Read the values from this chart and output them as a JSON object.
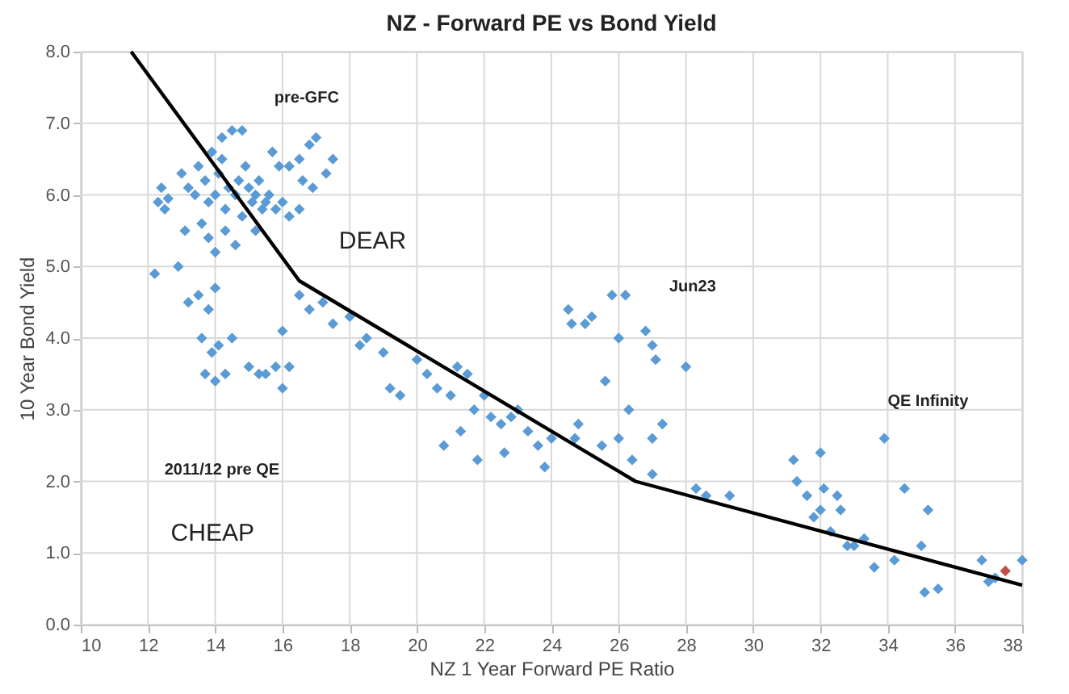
{
  "chart_data": {
    "type": "scatter",
    "title": "NZ - Forward PE vs Bond Yield",
    "xlabel": "NZ 1 Year Forward PE Ratio",
    "ylabel": "10 Year Bond Yield",
    "xlim": [
      10,
      38
    ],
    "xticks": [
      10,
      12,
      14,
      16,
      18,
      20,
      22,
      24,
      26,
      28,
      30,
      32,
      34,
      36,
      38
    ],
    "ylim": [
      0,
      8
    ],
    "yticks": [
      {
        "value": 0,
        "label": "0.0"
      },
      {
        "value": 1,
        "label": "1.0"
      },
      {
        "value": 2,
        "label": "2.0"
      },
      {
        "value": 3,
        "label": "3.0"
      },
      {
        "value": 4,
        "label": "4.0"
      },
      {
        "value": 5,
        "label": "5.0"
      },
      {
        "value": 6,
        "label": "6.0"
      },
      {
        "value": 7,
        "label": "7.0"
      },
      {
        "value": 8,
        "label": "8.0"
      }
    ],
    "grid": true,
    "marker": "diamond",
    "series": [
      {
        "color": "#5b9bd5",
        "x": [
          12.3,
          12.5,
          12.6,
          12.4,
          13.0,
          13.2,
          13.4,
          13.5,
          13.7,
          13.8,
          13.9,
          14.0,
          14.1,
          14.2,
          14.3,
          14.4,
          14.5,
          14.6,
          14.7,
          14.8,
          14.9,
          15.0,
          15.1,
          15.2,
          15.3,
          15.4,
          15.5,
          15.6,
          15.8,
          16.0,
          16.2,
          16.5,
          14.2,
          14.8,
          13.6,
          13.8,
          14.0,
          14.6,
          14.3,
          15.2,
          13.1,
          12.9,
          12.2,
          15.7,
          15.9,
          16.2,
          16.5,
          16.8,
          17.0,
          16.9,
          17.3,
          17.5,
          16.6,
          13.2,
          13.5,
          13.8,
          14.0,
          13.6,
          13.9,
          14.1,
          14.3,
          13.7,
          14.5,
          15.0,
          15.3,
          15.5,
          15.8,
          16.0,
          16.2,
          14.0,
          16.0,
          16.5,
          16.8,
          17.2,
          17.5,
          18.0,
          18.3,
          18.5,
          19.0,
          19.2,
          19.5,
          20.0,
          20.3,
          20.6,
          21.0,
          21.2,
          21.5,
          21.7,
          22.0,
          22.2,
          22.5,
          22.8,
          23.0,
          23.3,
          22.6,
          21.8,
          23.6,
          23.8,
          24.0,
          20.8,
          21.3,
          24.5,
          24.6,
          25.0,
          25.2,
          25.8,
          26.2,
          26.0,
          26.8,
          27.0,
          27.1,
          26.3,
          25.6,
          24.8,
          24.7,
          25.5,
          26.0,
          26.4,
          27.0,
          27.3,
          27.0,
          28.0,
          28.3,
          28.6,
          29.3,
          31.2,
          31.3,
          31.6,
          32.0,
          31.8,
          32.0,
          32.1,
          32.3,
          32.5,
          32.8,
          33.0,
          32.6,
          33.3,
          33.6,
          33.9,
          34.2,
          34.5,
          35.0,
          35.2,
          35.1,
          35.5,
          36.8,
          37.0,
          38.0,
          37.2
        ],
        "values": [
          5.9,
          5.8,
          5.95,
          6.1,
          6.3,
          6.1,
          6.0,
          6.4,
          6.2,
          5.9,
          6.6,
          6.0,
          6.3,
          6.5,
          5.8,
          6.1,
          6.9,
          6.0,
          6.2,
          5.7,
          6.4,
          6.1,
          5.9,
          6.0,
          6.2,
          5.8,
          5.9,
          6.0,
          5.8,
          5.9,
          5.7,
          5.8,
          6.8,
          6.9,
          5.6,
          5.4,
          5.2,
          5.3,
          5.5,
          5.5,
          5.5,
          5.0,
          4.9,
          6.6,
          6.4,
          6.4,
          6.5,
          6.7,
          6.8,
          6.1,
          6.3,
          6.5,
          6.2,
          4.5,
          4.6,
          4.4,
          4.7,
          4.0,
          3.8,
          3.9,
          3.5,
          3.5,
          4.0,
          3.6,
          3.5,
          3.5,
          3.6,
          3.3,
          3.6,
          3.4,
          4.1,
          4.6,
          4.4,
          4.5,
          4.2,
          4.3,
          3.9,
          4.0,
          3.8,
          3.3,
          3.2,
          3.7,
          3.5,
          3.3,
          3.2,
          3.6,
          3.5,
          3.0,
          3.2,
          2.9,
          2.8,
          2.9,
          3.0,
          2.7,
          2.4,
          2.3,
          2.5,
          2.2,
          2.6,
          2.5,
          2.7,
          4.4,
          4.2,
          4.2,
          4.3,
          4.6,
          4.6,
          4.0,
          4.1,
          3.9,
          3.7,
          3.0,
          3.4,
          2.8,
          2.6,
          2.5,
          2.6,
          2.3,
          2.6,
          2.8,
          2.1,
          3.6,
          1.9,
          1.8,
          1.8,
          2.3,
          2.0,
          1.8,
          2.4,
          1.5,
          1.6,
          1.9,
          1.3,
          1.8,
          1.1,
          1.1,
          1.6,
          1.2,
          0.8,
          2.6,
          0.9,
          1.9,
          1.1,
          1.6,
          0.45,
          0.5,
          0.9,
          0.6,
          0.9,
          0.65
        ]
      },
      {
        "color": "#c0504d",
        "x": [
          37.5
        ],
        "values": [
          0.75
        ]
      },
      {
        "type": "line",
        "marker": "none",
        "color": "#000000",
        "x": [
          11.5,
          16.5,
          26.5,
          38
        ],
        "values": [
          8.0,
          4.8,
          2.0,
          0.55
        ]
      }
    ],
    "annotations": [
      "pre-GFC",
      "DEAR",
      "Jun23",
      "2011/12 pre QE",
      "CHEAP",
      "QE Infinity"
    ]
  }
}
